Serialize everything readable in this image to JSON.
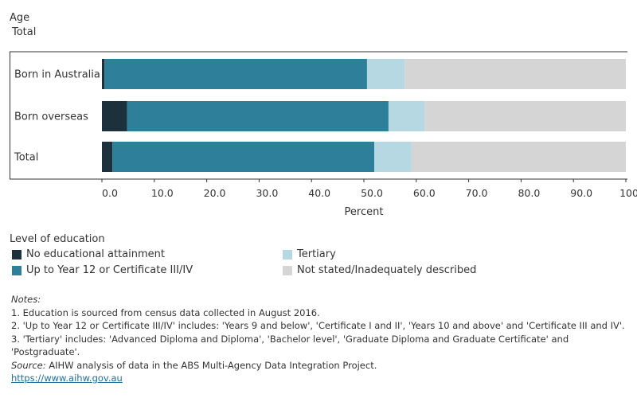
{
  "filter": {
    "label": "Age",
    "value": "Total"
  },
  "chart_data": {
    "type": "bar",
    "orientation": "horizontal",
    "stacked": true,
    "categories": [
      "Born in Australia",
      "Born overseas",
      "Total"
    ],
    "series": [
      {
        "name": "No educational attainment",
        "color": "#1c313b",
        "values": [
          0.5,
          4.8,
          2.0
        ]
      },
      {
        "name": "Up to Year 12 or Certificate III/IV",
        "color": "#2e7f9a",
        "values": [
          50.1,
          49.9,
          50.0
        ]
      },
      {
        "name": "Tertiary",
        "color": "#b5d8e3",
        "values": [
          7.2,
          6.9,
          7.1
        ]
      },
      {
        "name": "Not stated/Inadequately described",
        "color": "#d5d5d5",
        "values": [
          42.2,
          38.4,
          40.9
        ]
      }
    ],
    "xlabel": "Percent",
    "xlim": [
      0,
      100
    ],
    "xticks": [
      "0.0",
      "10.0",
      "20.0",
      "30.0",
      "40.0",
      "50.0",
      "60.0",
      "70.0",
      "80.0",
      "90.0",
      "100.0"
    ],
    "grid": false,
    "legend_placement": "bottom"
  },
  "legend": {
    "title": "Level of education",
    "items": [
      {
        "label": "No educational attainment",
        "color": "#1c313b"
      },
      {
        "label": "Up to Year 12 or Certificate III/IV",
        "color": "#2e7f9a"
      },
      {
        "label": "Tertiary",
        "color": "#b5d8e3"
      },
      {
        "label": "Not stated/Inadequately described",
        "color": "#d5d5d5"
      }
    ]
  },
  "notes": {
    "heading": "Notes:",
    "lines": [
      "1. Education is sourced from census data collected in August 2016.",
      "2. 'Up to Year 12 or Certificate III/IV' includes: 'Years 9 and below', 'Certificate I and II', 'Years 10 and above' and 'Certificate III and IV'.",
      "3. 'Tertiary' includes: 'Advanced Diploma and Diploma', 'Bachelor level', 'Graduate Diploma and Graduate Certificate' and 'Postgraduate'."
    ],
    "source_label": "Source:",
    "source_text": " AIHW analysis of data in the ABS Multi-Agency Data Integration Project.",
    "link": "https://www.aihw.gov.au"
  }
}
